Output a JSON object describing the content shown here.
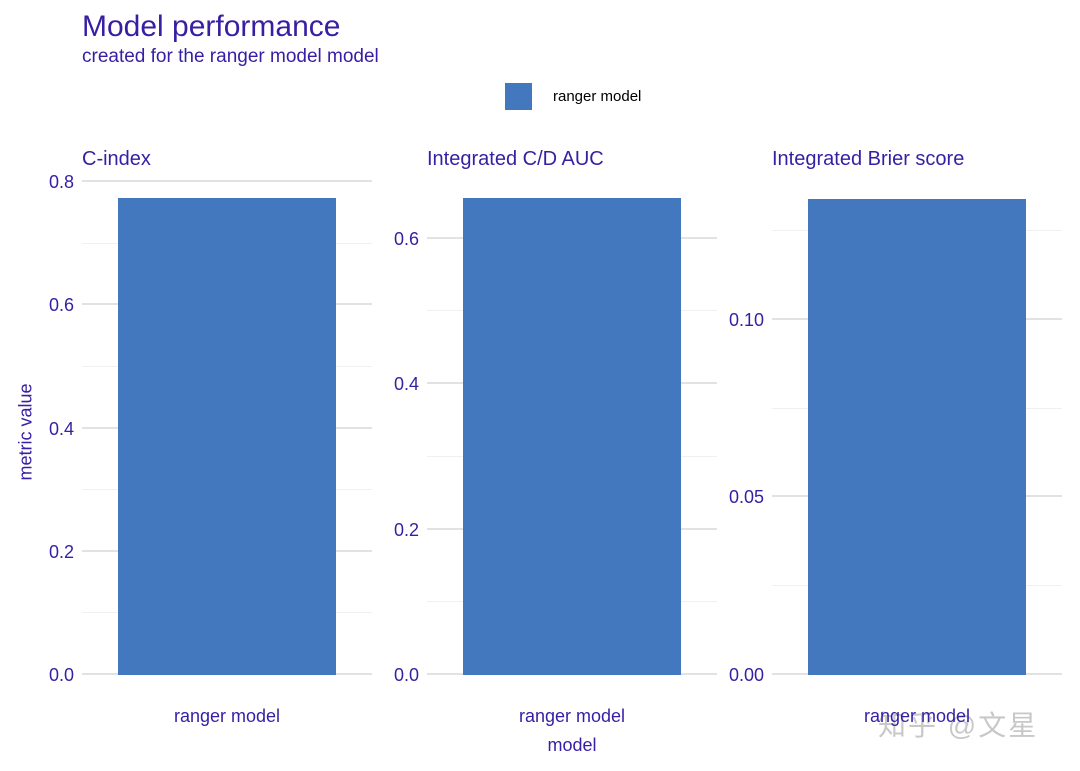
{
  "colors": {
    "text": "#371ea3",
    "bar": "#4378bf",
    "grid_major": "#e2e2e2",
    "grid_minor": "#f0f0f0",
    "legend_text": "#000000",
    "watermark": "#bebebe"
  },
  "legend": {
    "label": "ranger model",
    "swatch_color": "#4378bf",
    "position": "top"
  },
  "watermark": {
    "text": "知乎 @文星"
  },
  "chart_data": {
    "type": "bar",
    "title": "Model performance",
    "subtitle": "created for the ranger model model",
    "ylabel": "metric value",
    "xlabel": "model",
    "legend_entries": [
      "ranger model"
    ],
    "grid": "horizontal",
    "panels": [
      {
        "title": "C-index",
        "category": "ranger model",
        "series": "ranger model",
        "value": 0.774,
        "ylim": [
          0,
          0.813
        ],
        "major_ticks": [
          {
            "label": "0.0",
            "value": 0.0
          },
          {
            "label": "0.2",
            "value": 0.2
          },
          {
            "label": "0.4",
            "value": 0.4
          },
          {
            "label": "0.6",
            "value": 0.6
          },
          {
            "label": "0.8",
            "value": 0.8
          }
        ],
        "minor_ticks": [
          0.1,
          0.3,
          0.5,
          0.7
        ]
      },
      {
        "title": "Integrated C/D AUC",
        "category": "ranger model",
        "series": "ranger model",
        "value": 0.656,
        "ylim": [
          0,
          0.689
        ],
        "major_ticks": [
          {
            "label": "0.0",
            "value": 0.0
          },
          {
            "label": "0.2",
            "value": 0.2
          },
          {
            "label": "0.4",
            "value": 0.4
          },
          {
            "label": "0.6",
            "value": 0.6
          }
        ],
        "minor_ticks": [
          0.1,
          0.3,
          0.5
        ]
      },
      {
        "title": "Integrated Brier score",
        "category": "ranger model",
        "series": "ranger model",
        "value": 0.134,
        "ylim": [
          0,
          0.141
        ],
        "major_ticks": [
          {
            "label": "0.00",
            "value": 0.0
          },
          {
            "label": "0.05",
            "value": 0.05
          },
          {
            "label": "0.10",
            "value": 0.1
          }
        ],
        "minor_ticks": [
          0.025,
          0.075,
          0.125
        ]
      }
    ]
  }
}
